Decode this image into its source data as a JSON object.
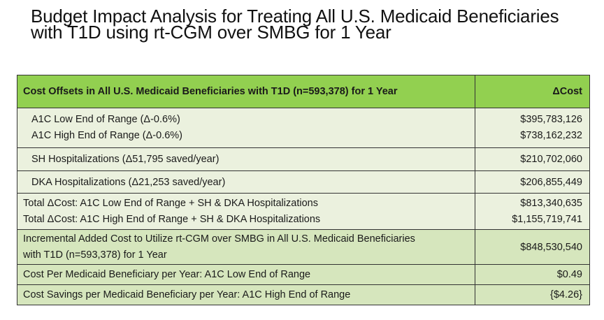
{
  "title_line1": "Budget Impact Analysis for Treating All U.S. Medicaid Beneficiaries",
  "title_line2": "with T1D using rt-CGM over SMBG for 1 Year",
  "table": {
    "header": {
      "label": "Cost Offsets in All U.S. Medicaid Beneficiaries with T1D (n=593,378) for 1 Year",
      "value": "ΔCost"
    },
    "a1c_low": {
      "label": "A1C Low End of Range (Δ-0.6%)",
      "value": "$395,783,126"
    },
    "a1c_high": {
      "label": "A1C High End of Range (Δ-0.6%)",
      "value": "$738,162,232"
    },
    "sh": {
      "label": "SH Hospitalizations (Δ51,795 saved/year)",
      "value": "$210,702,060"
    },
    "dka": {
      "label": "DKA Hospitalizations (Δ21,253 saved/year)",
      "value": "$206,855,449"
    },
    "total_low": {
      "label": "Total ΔCost: A1C Low End of Range + SH & DKA Hospitalizations",
      "value": "$813,340,635"
    },
    "total_high": {
      "label": "Total ΔCost: A1C High End of Range + SH & DKA Hospitalizations",
      "value": "$1,155,719,741"
    },
    "incremental": {
      "label_line1": "Incremental Added Cost to Utilize rt-CGM over SMBG in All U.S. Medicaid Beneficiaries",
      "label_line2": "with T1D (n=593,378) for 1 Year",
      "value": "$848,530,540"
    },
    "per_low": {
      "label": "Cost Per Medicaid Beneficiary per Year: A1C Low End of Range",
      "value": "$0.49"
    },
    "per_high": {
      "label": "Cost Savings per Medicaid Beneficiary per Year: A1C High End of Range",
      "value": "{$4.26}"
    }
  }
}
